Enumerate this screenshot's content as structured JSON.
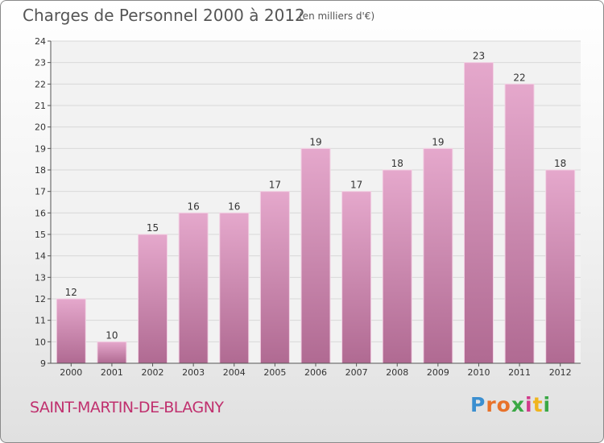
{
  "header": {
    "title": "Charges de Personnel 2000 à 2012",
    "unit": "(en milliers d'€)"
  },
  "footer": {
    "commune": "SAINT-MARTIN-DE-BLAGNY",
    "logo": "Proxiti"
  },
  "colors": {
    "bar_top": "#e5a8cc",
    "bar_bottom": "#b06a92",
    "commune_text": "#c0306e"
  },
  "chart_data": {
    "type": "bar",
    "title": "Charges de Personnel 2000 à 2012",
    "subtitle": "(en milliers d'€)",
    "categories": [
      "2000",
      "2001",
      "2002",
      "2003",
      "2004",
      "2005",
      "2006",
      "2007",
      "2008",
      "2009",
      "2010",
      "2011",
      "2012"
    ],
    "values": [
      12,
      10,
      15,
      16,
      16,
      17,
      19,
      17,
      18,
      19,
      23,
      22,
      18
    ],
    "ylim": [
      9,
      24
    ],
    "yticks": [
      9,
      10,
      11,
      12,
      13,
      14,
      15,
      16,
      17,
      18,
      19,
      20,
      21,
      22,
      23,
      24
    ],
    "grid": true
  }
}
